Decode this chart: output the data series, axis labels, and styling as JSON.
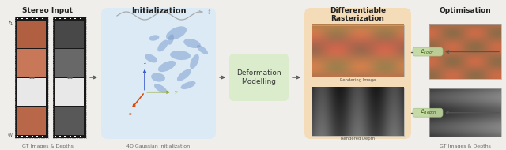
{
  "bg_color": "#f0eeeb",
  "title_stereo": "Stereo Input",
  "title_init": "Initialization",
  "title_diff_rast": "Differentiable\nRasterization",
  "title_optim": "Optimisation",
  "box_init_color": "#d8eaf7",
  "box_diff_color": "#f5d9b0",
  "box_deform_color": "#d8ecc8",
  "label_stereo": "GT Images & Depths",
  "label_init": "4D Gaussian initialization",
  "label_rendered_image": "Rendering Image",
  "label_rendered_depth": "Rendered Depth",
  "label_gt": "GT Images & Depths",
  "label_lcolor": "$\\mathcal{L}_{color}$",
  "label_ldepth": "$\\mathcal{L}_{depth}$",
  "deform_text": "Deformation\nModelling",
  "arrow_color": "#555555",
  "film_color": "#181818",
  "axis_blue": "#3355cc",
  "axis_green": "#99aa33",
  "axis_orange": "#dd4400",
  "gaussian_color": "#7799cc",
  "sine_color": "#aaaaaa",
  "lcolor_bg": "#c0d8a0",
  "ldepth_bg": "#c0d8a0",
  "film_color_frames": [
    "#b86848",
    "#c87858",
    "#b06040"
  ],
  "film_gray_frames": [
    "#585858",
    "#686868",
    "#484848"
  ],
  "film_white_frame": "#e8e8e8",
  "surgical_color1": "#c07858",
  "surgical_color2": "#a06040",
  "depth_color1": "#404040",
  "depth_color2": "#606060"
}
